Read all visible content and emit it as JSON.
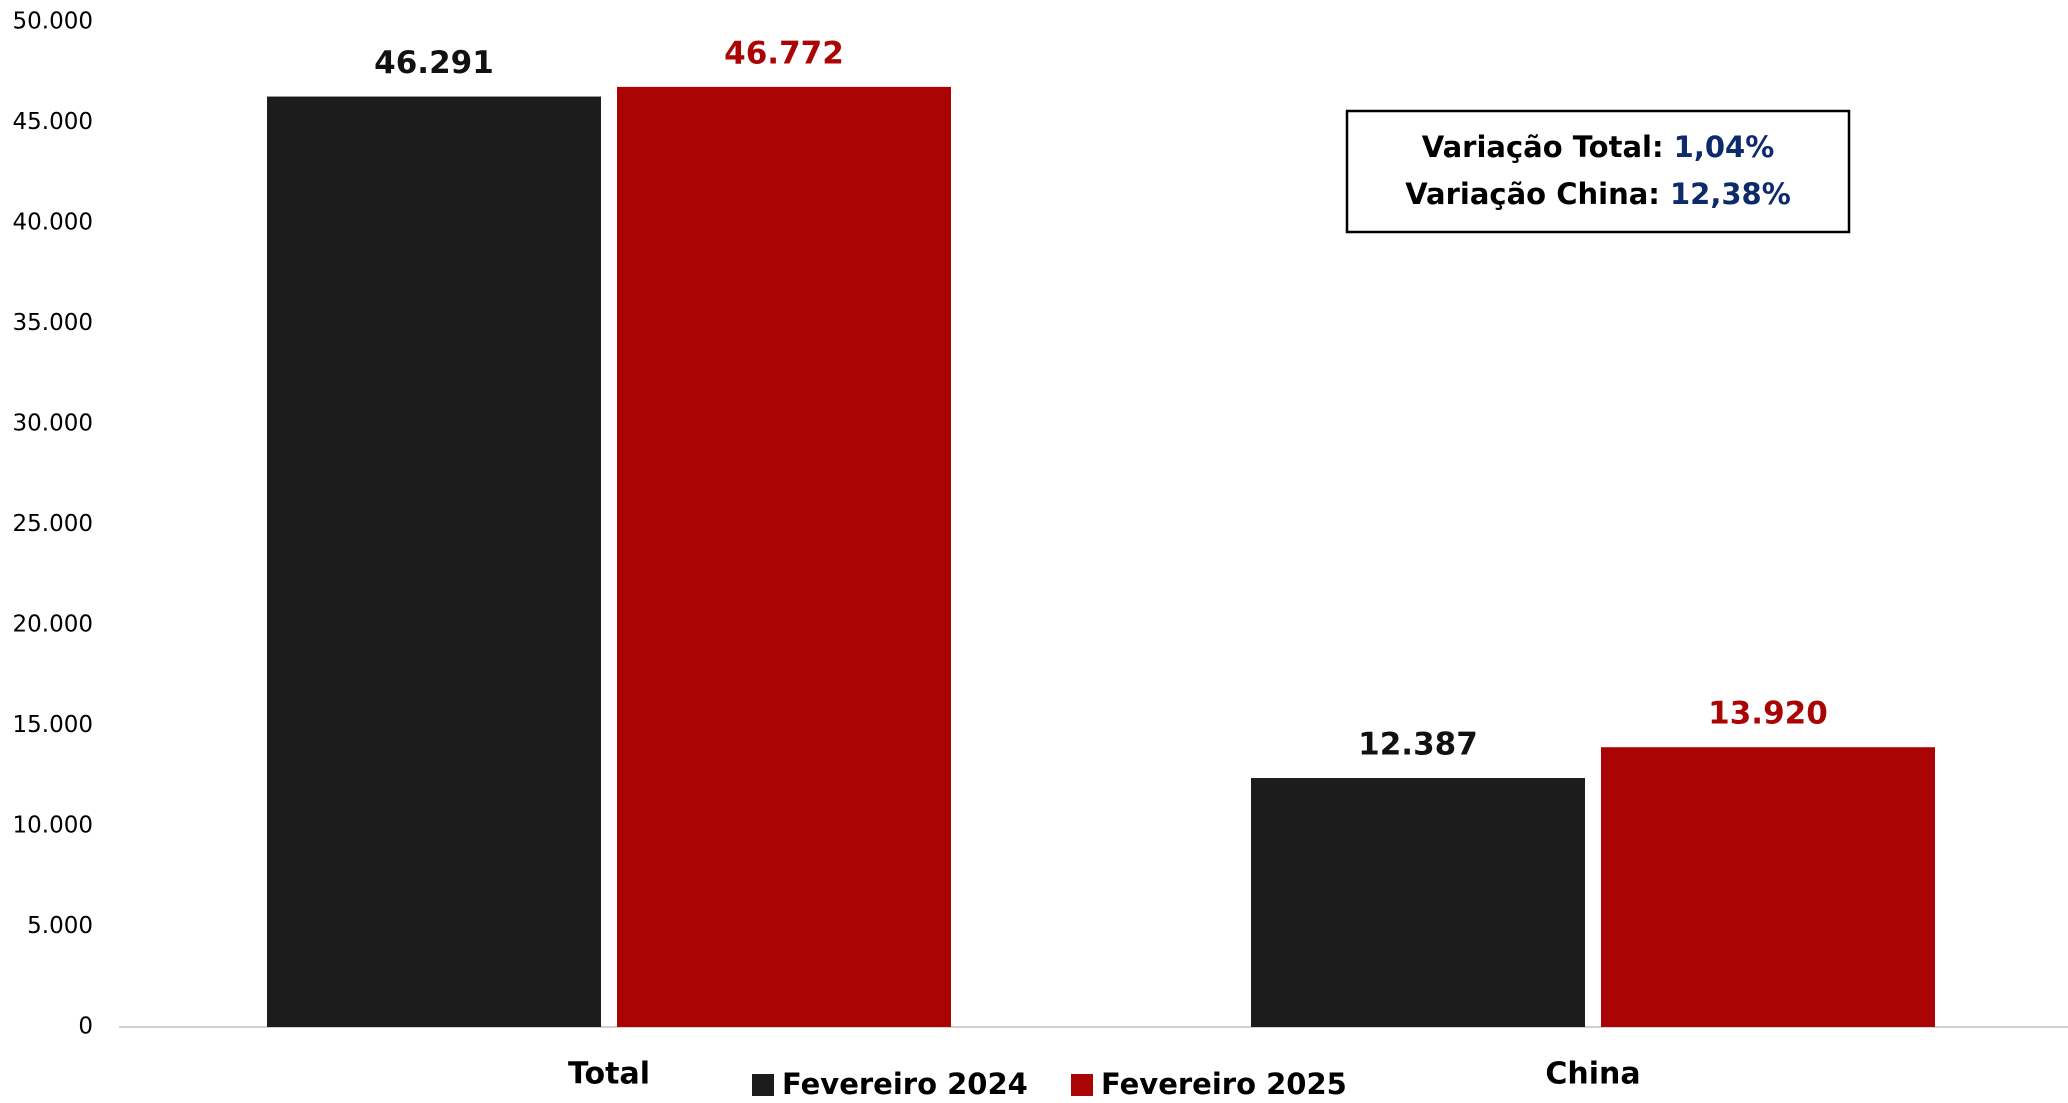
{
  "chart_data": {
    "type": "bar",
    "categories": [
      "Total",
      "China"
    ],
    "series": [
      {
        "name": "Fevereiro 2024",
        "color": "#1c1c1c",
        "values": [
          46291,
          12387
        ],
        "value_labels": [
          "46.291",
          "12.387"
        ]
      },
      {
        "name": "Fevereiro 2025",
        "color": "#aa0404",
        "values": [
          46772,
          13920
        ],
        "value_labels": [
          "46.772",
          "13.920"
        ]
      }
    ],
    "ylim": [
      0,
      50000
    ],
    "yticks": [
      0,
      {
        "value": 5000,
        "label": "5.000"
      },
      {
        "value": 10000,
        "label": "10.000"
      },
      {
        "value": 15000,
        "label": "15.000"
      },
      {
        "value": 20000,
        "label": "20.000"
      },
      {
        "value": 25000,
        "label": "25.000"
      },
      {
        "value": 30000,
        "label": "30.000"
      },
      {
        "value": 35000,
        "label": "35.000"
      },
      {
        "value": 40000,
        "label": "40.000"
      },
      {
        "value": 45000,
        "label": "45.000"
      },
      {
        "value": 50000,
        "label": "50.000"
      }
    ],
    "legend": "bottom",
    "annotations": [
      {
        "label": "Variação Total:",
        "value": "1,04%"
      },
      {
        "label": "Variação China:",
        "value": "12,38%"
      }
    ]
  }
}
